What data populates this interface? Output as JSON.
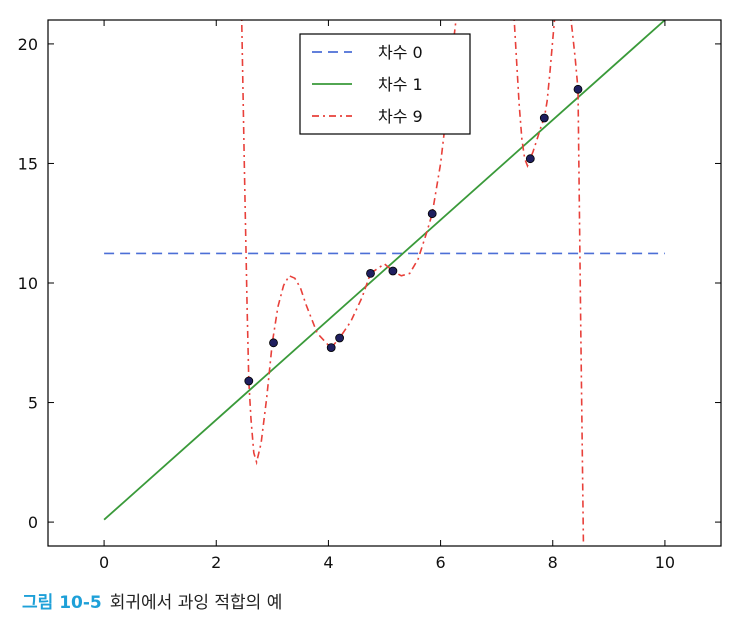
{
  "chart_data": {
    "type": "line",
    "title": "",
    "xlabel": "",
    "ylabel": "",
    "xlim": [
      -1,
      11
    ],
    "ylim": [
      -1,
      21
    ],
    "xticks": [
      0,
      2,
      4,
      6,
      8,
      10
    ],
    "yticks": [
      0,
      5,
      10,
      15,
      20
    ],
    "legend_position": "top-center",
    "points": {
      "x": [
        2.58,
        3.02,
        4.05,
        4.2,
        4.75,
        5.15,
        5.85,
        7.6,
        7.85,
        8.45
      ],
      "y": [
        5.9,
        7.5,
        7.3,
        7.7,
        10.4,
        10.5,
        12.9,
        15.2,
        16.9,
        18.1
      ],
      "color": "#1f1f5f"
    },
    "series": [
      {
        "name": "차수 0",
        "style": "dashed",
        "color": "#4c6fd6",
        "x": [
          0,
          10
        ],
        "y": [
          11.24,
          11.24
        ]
      },
      {
        "name": "차수 1",
        "style": "solid",
        "color": "#3a9a3a",
        "x": [
          0,
          10
        ],
        "y": [
          0.1,
          21.0
        ]
      },
      {
        "name": "차수 9",
        "style": "dashdot",
        "color": "#e8403a",
        "x": [
          2.45,
          2.5,
          2.55,
          2.58,
          2.62,
          2.67,
          2.72,
          2.8,
          2.9,
          3.0,
          3.1,
          3.2,
          3.3,
          3.4,
          3.5,
          3.6,
          3.8,
          4.0,
          4.05,
          4.2,
          4.4,
          4.6,
          4.75,
          5.0,
          5.15,
          5.3,
          5.45,
          5.6,
          5.75,
          5.85,
          6.0,
          6.1,
          6.2,
          6.3
        ],
        "y": [
          21.5,
          15,
          9,
          5.9,
          4.3,
          2.9,
          2.5,
          3.3,
          5.2,
          7.5,
          9.0,
          9.9,
          10.3,
          10.2,
          9.8,
          9.1,
          7.9,
          7.4,
          7.3,
          7.7,
          8.4,
          9.4,
          10.4,
          10.8,
          10.5,
          10.3,
          10.4,
          11.0,
          12.1,
          12.9,
          15.0,
          17.0,
          19.5,
          21.5
        ]
      },
      {
        "name": "",
        "style": "dashdot",
        "color": "#e8403a",
        "x": [
          7.3,
          7.35,
          7.4,
          7.45,
          7.5,
          7.55,
          7.6,
          7.65,
          7.72,
          7.8,
          7.85,
          7.9,
          7.95,
          8.0,
          8.05
        ],
        "y": [
          21.5,
          19.5,
          17.5,
          16.0,
          15.2,
          14.9,
          15.2,
          15.5,
          16.0,
          16.6,
          16.9,
          17.6,
          18.8,
          20.2,
          21.5
        ]
      },
      {
        "name": "",
        "style": "dashdot",
        "color": "#e8403a",
        "x": [
          8.3,
          8.35,
          8.4,
          8.45,
          8.5,
          8.55
        ],
        "y": [
          21.5,
          20.5,
          19.4,
          18.1,
          8.0,
          -1.5
        ]
      }
    ]
  },
  "caption": {
    "figure_number": "그림 10-5",
    "text": "회귀에서 과잉 적합의 예"
  }
}
